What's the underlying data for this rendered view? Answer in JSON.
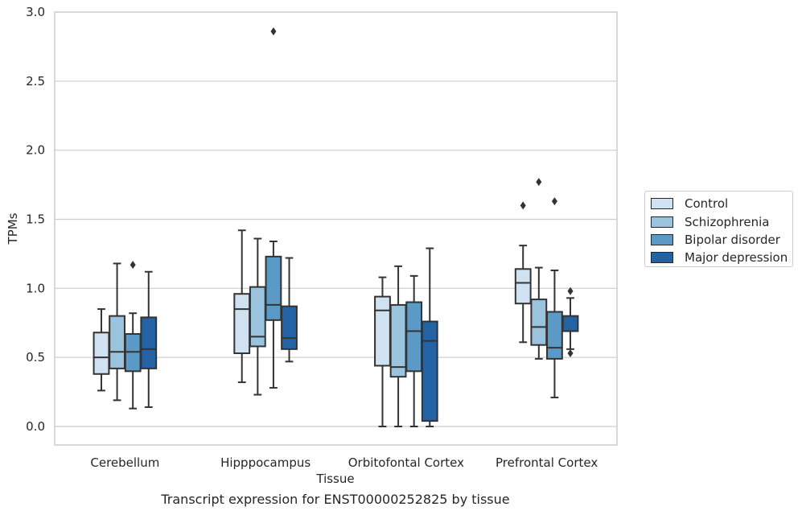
{
  "caption": "Transcript expression for ENST00000252825 by tissue",
  "chart_data": {
    "type": "box",
    "xlabel": "Tissue",
    "ylabel": "TPMs",
    "ylim": [
      -0.13,
      3.0
    ],
    "yticks": [
      0.0,
      0.5,
      1.0,
      1.5,
      2.0,
      2.5,
      3.0
    ],
    "ytick_labels": [
      "0.0",
      "0.5",
      "1.0",
      "1.5",
      "2.0",
      "2.5",
      "3.0"
    ],
    "grid": "horizontal",
    "legend_position": "right",
    "categories": [
      "Cerebellum",
      "Hipppocampus",
      "Orbitofontal Cortex",
      "Prefrontal Cortex"
    ],
    "series": [
      {
        "name": "Control",
        "color": "#d0e1f2",
        "boxes": [
          {
            "whislo": 0.26,
            "q1": 0.38,
            "med": 0.5,
            "q3": 0.68,
            "whishi": 0.85,
            "fliers": []
          },
          {
            "whislo": 0.32,
            "q1": 0.53,
            "med": 0.85,
            "q3": 0.96,
            "whishi": 1.42,
            "fliers": []
          },
          {
            "whislo": 0.0,
            "q1": 0.44,
            "med": 0.84,
            "q3": 0.94,
            "whishi": 1.08,
            "fliers": []
          },
          {
            "whislo": 0.61,
            "q1": 0.89,
            "med": 1.04,
            "q3": 1.14,
            "whishi": 1.31,
            "fliers": [
              1.6
            ]
          }
        ]
      },
      {
        "name": "Schizophrenia",
        "color": "#9ac4dd",
        "boxes": [
          {
            "whislo": 0.19,
            "q1": 0.42,
            "med": 0.54,
            "q3": 0.8,
            "whishi": 1.18,
            "fliers": []
          },
          {
            "whislo": 0.23,
            "q1": 0.58,
            "med": 0.65,
            "q3": 1.01,
            "whishi": 1.36,
            "fliers": []
          },
          {
            "whislo": 0.0,
            "q1": 0.36,
            "med": 0.43,
            "q3": 0.88,
            "whishi": 1.16,
            "fliers": []
          },
          {
            "whislo": 0.49,
            "q1": 0.59,
            "med": 0.72,
            "q3": 0.92,
            "whishi": 1.15,
            "fliers": [
              1.77
            ]
          }
        ]
      },
      {
        "name": "Bipolar disorder",
        "color": "#5b9ac6",
        "boxes": [
          {
            "whislo": 0.13,
            "q1": 0.4,
            "med": 0.54,
            "q3": 0.67,
            "whishi": 0.82,
            "fliers": [
              1.17
            ]
          },
          {
            "whislo": 0.28,
            "q1": 0.77,
            "med": 0.88,
            "q3": 1.23,
            "whishi": 1.34,
            "fliers": [
              2.86
            ]
          },
          {
            "whislo": 0.0,
            "q1": 0.4,
            "med": 0.69,
            "q3": 0.9,
            "whishi": 1.09,
            "fliers": []
          },
          {
            "whislo": 0.21,
            "q1": 0.49,
            "med": 0.57,
            "q3": 0.83,
            "whishi": 1.13,
            "fliers": [
              1.63
            ]
          }
        ]
      },
      {
        "name": "Major depression",
        "color": "#2463a3",
        "boxes": [
          {
            "whislo": 0.14,
            "q1": 0.42,
            "med": 0.56,
            "q3": 0.79,
            "whishi": 1.12,
            "fliers": []
          },
          {
            "whislo": 0.47,
            "q1": 0.56,
            "med": 0.64,
            "q3": 0.87,
            "whishi": 1.22,
            "fliers": []
          },
          {
            "whislo": 0.0,
            "q1": 0.04,
            "med": 0.62,
            "q3": 0.76,
            "whishi": 1.29,
            "fliers": []
          },
          {
            "whislo": 0.56,
            "q1": 0.69,
            "med": 0.69,
            "q3": 0.8,
            "whishi": 0.93,
            "fliers": [
              0.98,
              0.53
            ]
          }
        ]
      }
    ]
  }
}
